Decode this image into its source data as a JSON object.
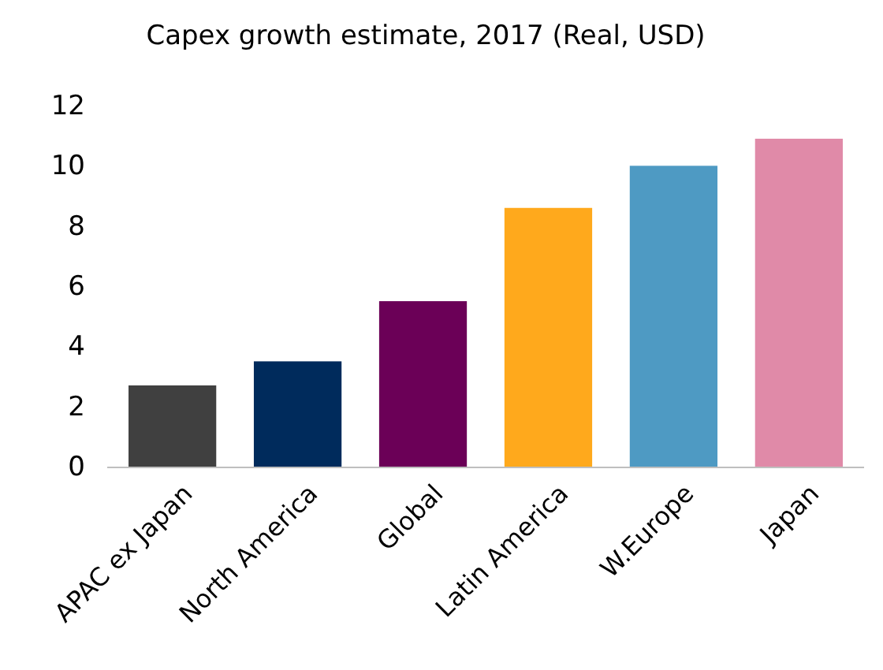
{
  "chart_data": {
    "type": "bar",
    "title": "Capex growth estimate, 2017 (Real, USD)",
    "categories": [
      "APAC ex Japan",
      "North America",
      "Global",
      "Latin America",
      "W.Europe",
      "Japan"
    ],
    "values": [
      2.7,
      3.5,
      5.5,
      8.6,
      10.0,
      10.9
    ],
    "colors": [
      "#404040",
      "#002b5c",
      "#6b0057",
      "#ffa91c",
      "#4e9ac3",
      "#e08aa8"
    ],
    "ylim": [
      0,
      12
    ],
    "yticks": [
      0,
      2,
      4,
      6,
      8,
      10,
      12
    ],
    "grid": false
  }
}
